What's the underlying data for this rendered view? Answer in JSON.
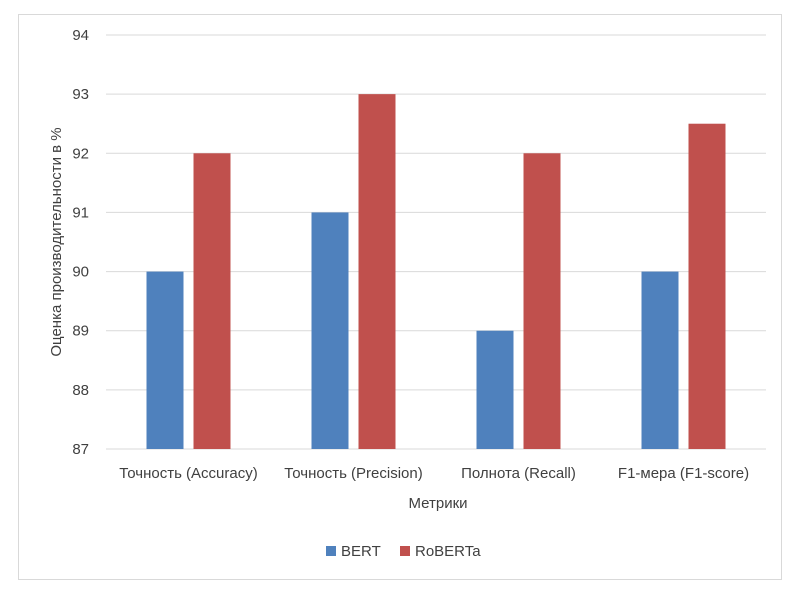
{
  "chart_data": {
    "type": "bar",
    "title": "",
    "xlabel": "Метрики",
    "ylabel": "Оценка производительности в %",
    "categories": [
      "Точность (Accuracy)",
      "Точность (Precision)",
      "Полнота (Recall)",
      "F1-мера (F1-score)"
    ],
    "series": [
      {
        "name": "BERT",
        "values": [
          90,
          91,
          89,
          90
        ],
        "color": "#4f81bd"
      },
      {
        "name": "RoBERTa",
        "values": [
          92,
          93,
          92,
          92.5
        ],
        "color": "#c0504d"
      }
    ],
    "ylim": [
      87,
      94
    ],
    "yticks": [
      87,
      88,
      89,
      90,
      91,
      92,
      93,
      94
    ],
    "grid": true,
    "legend_position": "bottom"
  }
}
